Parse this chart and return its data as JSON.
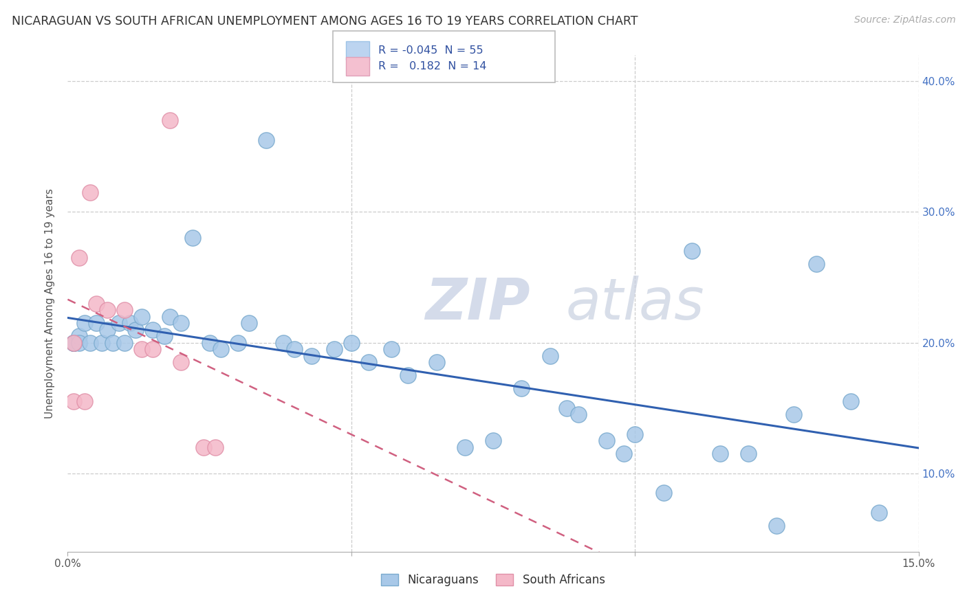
{
  "title": "NICARAGUAN VS SOUTH AFRICAN UNEMPLOYMENT AMONG AGES 16 TO 19 YEARS CORRELATION CHART",
  "source": "Source: ZipAtlas.com",
  "ylabel": "Unemployment Among Ages 16 to 19 years",
  "xlim": [
    0.0,
    0.15
  ],
  "ylim": [
    0.04,
    0.42
  ],
  "xticks": [
    0.0,
    0.05,
    0.1,
    0.15
  ],
  "xticklabels": [
    "0.0%",
    "",
    "",
    "15.0%"
  ],
  "yticks": [
    0.1,
    0.2,
    0.3,
    0.4
  ],
  "yticklabels_right": [
    "10.0%",
    "20.0%",
    "30.0%",
    "40.0%"
  ],
  "legend_R1": "-0.045",
  "legend_N1": "55",
  "legend_R2": "0.182",
  "legend_N2": "14",
  "color_nicaraguan": "#a8c8e8",
  "color_south_african": "#f4b8c8",
  "color_line1": "#3060b0",
  "color_line2": "#d06080",
  "watermark_zip": "ZIP",
  "watermark_atlas": "atlas",
  "background_color": "#ffffff",
  "grid_color": "#cccccc",
  "nic_x": [
    0.001,
    0.001,
    0.001,
    0.001,
    0.001,
    0.002,
    0.002,
    0.003,
    0.004,
    0.005,
    0.006,
    0.007,
    0.008,
    0.009,
    0.01,
    0.011,
    0.012,
    0.013,
    0.015,
    0.017,
    0.018,
    0.02,
    0.022,
    0.025,
    0.027,
    0.03,
    0.032,
    0.035,
    0.038,
    0.04,
    0.043,
    0.047,
    0.05,
    0.053,
    0.057,
    0.06,
    0.065,
    0.07,
    0.075,
    0.08,
    0.085,
    0.088,
    0.09,
    0.095,
    0.098,
    0.1,
    0.105,
    0.11,
    0.115,
    0.12,
    0.125,
    0.128,
    0.132,
    0.138,
    0.143
  ],
  "nic_y": [
    0.2,
    0.2,
    0.2,
    0.2,
    0.2,
    0.205,
    0.2,
    0.215,
    0.2,
    0.215,
    0.2,
    0.21,
    0.2,
    0.215,
    0.2,
    0.215,
    0.21,
    0.22,
    0.21,
    0.205,
    0.22,
    0.215,
    0.28,
    0.2,
    0.195,
    0.2,
    0.215,
    0.355,
    0.2,
    0.195,
    0.19,
    0.195,
    0.2,
    0.185,
    0.195,
    0.175,
    0.185,
    0.12,
    0.125,
    0.165,
    0.19,
    0.15,
    0.145,
    0.125,
    0.115,
    0.13,
    0.085,
    0.27,
    0.115,
    0.115,
    0.06,
    0.145,
    0.26,
    0.155,
    0.07
  ],
  "sa_x": [
    0.001,
    0.001,
    0.002,
    0.003,
    0.004,
    0.005,
    0.007,
    0.01,
    0.013,
    0.015,
    0.018,
    0.02,
    0.024,
    0.026
  ],
  "sa_y": [
    0.2,
    0.155,
    0.265,
    0.155,
    0.315,
    0.23,
    0.225,
    0.225,
    0.195,
    0.195,
    0.37,
    0.185,
    0.12,
    0.12
  ]
}
